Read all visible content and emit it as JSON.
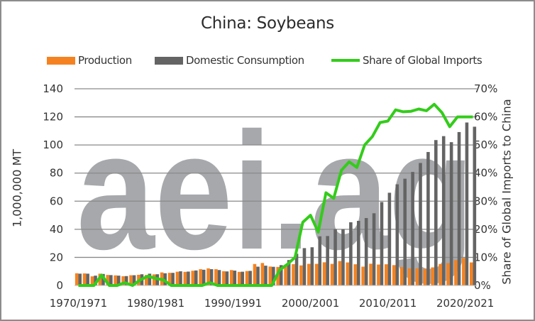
{
  "chart_data": {
    "type": "bar",
    "title": "China: Soybeans",
    "xlabel": "",
    "ylabel": "1,000,000 MT",
    "y2label": "Share of Global Imports to China",
    "ylim": [
      0,
      140
    ],
    "y2lim": [
      0,
      0.7
    ],
    "yticks": [
      0,
      20,
      40,
      60,
      80,
      100,
      120,
      140
    ],
    "y2ticks": [
      "0%",
      "10%",
      "20%",
      "30%",
      "40%",
      "50%",
      "60%",
      "70%"
    ],
    "xtick_labels": [
      "1970/1971",
      "1980/1981",
      "1990/1991",
      "2000/2001",
      "2010/2011",
      "2020/2021"
    ],
    "grid": true,
    "legend_position": "top",
    "watermark": "aei.ag",
    "categories": [
      "1970/1971",
      "1971/1972",
      "1972/1973",
      "1973/1974",
      "1974/1975",
      "1975/1976",
      "1976/1977",
      "1977/1978",
      "1978/1979",
      "1979/1980",
      "1980/1981",
      "1981/1982",
      "1982/1983",
      "1983/1984",
      "1984/1985",
      "1985/1986",
      "1986/1987",
      "1987/1988",
      "1988/1989",
      "1989/1990",
      "1990/1991",
      "1991/1992",
      "1992/1993",
      "1993/1994",
      "1994/1995",
      "1995/1996",
      "1996/1997",
      "1997/1998",
      "1998/1999",
      "1999/2000",
      "2000/2001",
      "2001/2002",
      "2002/2003",
      "2003/2004",
      "2004/2005",
      "2005/2006",
      "2006/2007",
      "2007/2008",
      "2008/2009",
      "2009/2010",
      "2010/2011",
      "2011/2012",
      "2012/2013",
      "2013/2014",
      "2014/2015",
      "2015/2016",
      "2016/2017",
      "2017/2018",
      "2018/2019",
      "2019/2020",
      "2020/2021",
      "2021/2022"
    ],
    "series": [
      {
        "name": "Production",
        "type": "bar",
        "axis": "left",
        "color": "#f58220",
        "values": [
          8.7,
          8.6,
          6.5,
          8.4,
          7.5,
          7.2,
          6.6,
          7.3,
          7.6,
          7.5,
          7.9,
          9.3,
          9.0,
          9.8,
          9.7,
          10.5,
          11.6,
          12.2,
          11.6,
          10.2,
          11.0,
          9.7,
          10.3,
          15.3,
          16.0,
          13.5,
          13.2,
          14.7,
          15.2,
          14.3,
          15.4,
          15.4,
          16.5,
          15.4,
          17.4,
          16.4,
          15.1,
          13.4,
          15.5,
          14.9,
          15.1,
          14.5,
          13.1,
          12.2,
          12.2,
          11.8,
          12.9,
          15.3,
          15.9,
          18.1,
          19.6,
          16.4
        ]
      },
      {
        "name": "Domestic Consumption",
        "type": "bar",
        "axis": "left",
        "color": "#646464",
        "values": [
          8.4,
          8.4,
          7.0,
          8.2,
          7.4,
          7.0,
          6.7,
          7.3,
          8.0,
          8.4,
          8.0,
          8.7,
          9.0,
          10.1,
          9.9,
          10.7,
          11.2,
          11.6,
          11.0,
          10.0,
          10.6,
          9.8,
          10.4,
          13.4,
          14.1,
          13.3,
          14.5,
          18.1,
          22.6,
          26.6,
          27.2,
          35.0,
          35.2,
          40.1,
          40.0,
          45.0,
          46.0,
          48.0,
          51.4,
          59.4,
          66.0,
          72.0,
          76.0,
          80.8,
          87.2,
          95.0,
          103.5,
          106.3,
          102.0,
          109.2,
          116.0,
          113.0
        ]
      },
      {
        "name": "Share of Global Imports",
        "type": "line",
        "axis": "right",
        "color": "#33cc1a",
        "values": [
          0.0,
          0.0,
          0.0,
          0.037,
          0.0,
          0.0,
          0.01,
          0.0,
          0.02,
          0.033,
          0.025,
          0.02,
          0.0,
          0.0,
          0.0,
          0.0,
          0.0,
          0.01,
          0.0,
          0.0,
          0.0,
          0.0,
          0.0,
          0.0,
          0.0,
          0.0,
          0.055,
          0.075,
          0.1,
          0.225,
          0.25,
          0.19,
          0.33,
          0.31,
          0.41,
          0.44,
          0.42,
          0.5,
          0.53,
          0.58,
          0.585,
          0.625,
          0.618,
          0.62,
          0.628,
          0.622,
          0.645,
          0.615,
          0.565,
          0.6,
          0.6,
          0.6
        ]
      }
    ]
  },
  "legend": {
    "production": "Production",
    "consumption": "Domestic Consumption",
    "share": "Share of Global Imports"
  }
}
